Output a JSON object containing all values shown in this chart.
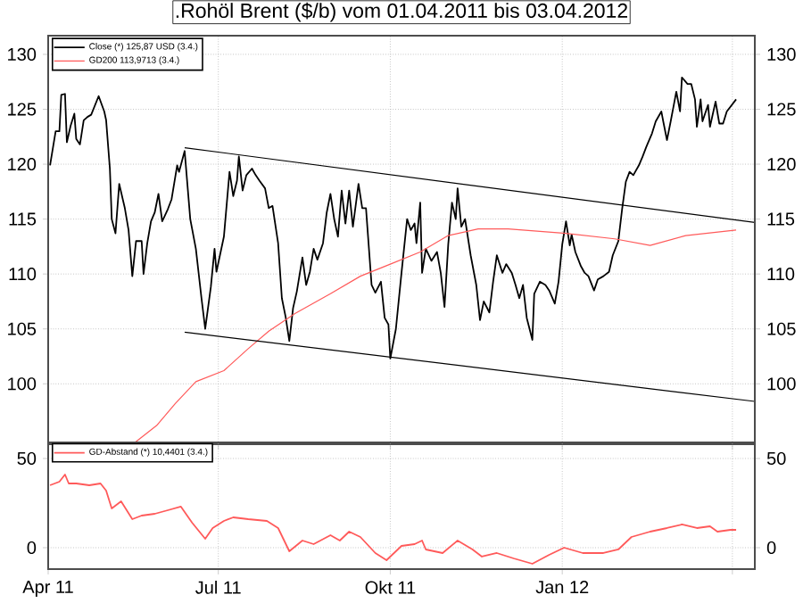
{
  "chart_data": [
    {
      "type": "line",
      "title": ".Rohöl Brent ($/b) vom 01.04.2011 bis 03.04.2012",
      "xlim": [
        "2011-04-01",
        "2012-04-13"
      ],
      "ylim": [
        94.5,
        131.7
      ],
      "y2lim": [
        94.5,
        131.7
      ],
      "xticks": [
        {
          "value": "2011-04-01",
          "label": null
        },
        {
          "value": "2011-07-01",
          "label": null
        },
        {
          "value": "2011-10-01",
          "label": null
        },
        {
          "value": "2012-01-01",
          "label": null
        },
        {
          "value": "2012-04-01",
          "label": null
        }
      ],
      "yticks": [
        100,
        105,
        110,
        115,
        120,
        125,
        130
      ],
      "y2ticks": [
        100,
        105,
        110,
        115,
        120,
        125,
        130
      ],
      "tick_labels": "y",
      "grid": true,
      "legend": "top left",
      "series": [
        {
          "name": "Close (*) 125,87 USD (3.4.)",
          "color": "#000000",
          "x": [
            "2011-04-02",
            "2011-04-05",
            "2011-04-07",
            "2011-04-08",
            "2011-04-10",
            "2011-04-11",
            "2011-04-13",
            "2011-04-15",
            "2011-04-16",
            "2011-04-18",
            "2011-04-20",
            "2011-04-22",
            "2011-04-24",
            "2011-04-28",
            "2011-05-01",
            "2011-05-02",
            "2011-05-04",
            "2011-05-05",
            "2011-05-07",
            "2011-05-09",
            "2011-05-12",
            "2011-05-14",
            "2011-05-16",
            "2011-05-18",
            "2011-05-21",
            "2011-05-22",
            "2011-05-24",
            "2011-05-26",
            "2011-05-28",
            "2011-05-30",
            "2011-06-01",
            "2011-06-04",
            "2011-06-06",
            "2011-06-09",
            "2011-06-10",
            "2011-06-13",
            "2011-06-16",
            "2011-06-19",
            "2011-06-22",
            "2011-06-24",
            "2011-06-27",
            "2011-06-29",
            "2011-06-30",
            "2011-07-02",
            "2011-07-04",
            "2011-07-07",
            "2011-07-09",
            "2011-07-11",
            "2011-07-12",
            "2011-07-14",
            "2011-07-16",
            "2011-07-19",
            "2011-07-21",
            "2011-07-23",
            "2011-07-26",
            "2011-07-28",
            "2011-07-30",
            "2011-08-02",
            "2011-08-04",
            "2011-08-06",
            "2011-08-08",
            "2011-08-10",
            "2011-08-12",
            "2011-08-15",
            "2011-08-17",
            "2011-08-19",
            "2011-08-21",
            "2011-08-23",
            "2011-08-26",
            "2011-08-28",
            "2011-08-30",
            "2011-09-01",
            "2011-09-03",
            "2011-09-05",
            "2011-09-07",
            "2011-09-09",
            "2011-09-11",
            "2011-09-14",
            "2011-09-16",
            "2011-09-18",
            "2011-09-21",
            "2011-09-23",
            "2011-09-26",
            "2011-09-28",
            "2011-09-30",
            "2011-10-01",
            "2011-10-04",
            "2011-10-07",
            "2011-10-10",
            "2011-10-12",
            "2011-10-14",
            "2011-10-15",
            "2011-10-17",
            "2011-10-18",
            "2011-10-20",
            "2011-10-23",
            "2011-10-26",
            "2011-10-28",
            "2011-10-30",
            "2011-11-01",
            "2011-11-03",
            "2011-11-05",
            "2011-11-06",
            "2011-11-08",
            "2011-11-10",
            "2011-11-13",
            "2011-11-16",
            "2011-11-18",
            "2011-11-20",
            "2011-11-23",
            "2011-11-25",
            "2011-11-27",
            "2011-11-30",
            "2011-12-02",
            "2011-12-05",
            "2011-12-07",
            "2011-12-09",
            "2011-12-11",
            "2011-12-13",
            "2011-12-16",
            "2011-12-17",
            "2011-12-20",
            "2011-12-23",
            "2011-12-25",
            "2011-12-28",
            "2011-12-30",
            "2012-01-01",
            "2012-01-03",
            "2012-01-05",
            "2012-01-06",
            "2012-01-08",
            "2012-01-11",
            "2012-01-13",
            "2012-01-15",
            "2012-01-18",
            "2012-01-20",
            "2012-01-23",
            "2012-01-26",
            "2012-01-28",
            "2012-01-31",
            "2012-02-02",
            "2012-02-04",
            "2012-02-06",
            "2012-02-08",
            "2012-02-11",
            "2012-02-13",
            "2012-02-15",
            "2012-02-18",
            "2012-02-20",
            "2012-02-23",
            "2012-02-24",
            "2012-02-26",
            "2012-02-28",
            "2012-03-01",
            "2012-03-02",
            "2012-03-04",
            "2012-03-05",
            "2012-03-08",
            "2012-03-10",
            "2012-03-12",
            "2012-03-13",
            "2012-03-15",
            "2012-03-16",
            "2012-03-19",
            "2012-03-20",
            "2012-03-23",
            "2012-03-25",
            "2012-03-27",
            "2012-03-29",
            "2012-04-03"
          ],
          "values": [
            119.9,
            123.0,
            123.0,
            126.3,
            126.4,
            122.0,
            123.5,
            124.6,
            122.3,
            121.8,
            124.0,
            124.3,
            124.5,
            126.2,
            124.8,
            124.0,
            119.6,
            115.0,
            113.7,
            118.2,
            116.0,
            114.0,
            109.8,
            113.0,
            113.0,
            110.0,
            112.8,
            114.8,
            115.6,
            117.3,
            114.8,
            115.9,
            116.8,
            119.9,
            119.3,
            121.2,
            115.0,
            112.3,
            107.8,
            105.0,
            108.8,
            112.3,
            110.2,
            111.8,
            113.4,
            119.3,
            117.1,
            118.5,
            120.7,
            117.6,
            119.0,
            119.6,
            119.0,
            118.5,
            117.8,
            116.0,
            116.2,
            112.8,
            107.8,
            106.1,
            103.9,
            106.9,
            108.4,
            111.5,
            109.0,
            110.2,
            112.3,
            111.3,
            112.8,
            115.6,
            117.3,
            115.0,
            113.4,
            117.6,
            114.6,
            117.6,
            114.3,
            118.2,
            116.0,
            116.0,
            109.0,
            108.3,
            109.3,
            106.0,
            105.4,
            102.3,
            105.0,
            110.1,
            115.0,
            114.0,
            114.6,
            112.8,
            116.5,
            110.1,
            112.3,
            111.2,
            112.0,
            110.1,
            107.0,
            112.7,
            116.5,
            115.0,
            117.8,
            114.3,
            115.0,
            111.7,
            109.0,
            105.8,
            107.5,
            106.5,
            109.3,
            111.7,
            110.1,
            110.9,
            110.1,
            109.0,
            107.8,
            109.0,
            106.0,
            104.0,
            108.2,
            109.3,
            109.0,
            108.5,
            107.3,
            109.3,
            112.7,
            114.8,
            112.6,
            113.6,
            112.0,
            110.7,
            110.1,
            109.8,
            108.5,
            109.5,
            109.8,
            110.2,
            111.7,
            113.0,
            115.9,
            118.4,
            119.3,
            119.0,
            119.9,
            120.7,
            121.6,
            122.8,
            123.9,
            124.8,
            123.9,
            122.2,
            123.9,
            125.7,
            126.6,
            124.8,
            127.9,
            127.3,
            127.3,
            125.9,
            123.4,
            125.9,
            123.9,
            125.4,
            123.4,
            125.7,
            123.7,
            123.7,
            124.8,
            125.9
          ]
        },
        {
          "name": "GD200 113,9713 (3.4.)",
          "color": "#ff5a5a",
          "x": [
            "2011-05-17",
            "2011-05-29",
            "2011-06-08",
            "2011-06-19",
            "2011-07-04",
            "2011-07-17",
            "2011-07-28",
            "2011-08-11",
            "2011-08-30",
            "2011-09-15",
            "2011-10-01",
            "2011-10-17",
            "2011-11-01",
            "2011-11-17",
            "2011-12-03",
            "2012-01-03",
            "2012-01-29",
            "2012-02-17",
            "2012-03-07",
            "2012-04-03"
          ],
          "values": [
            94.6,
            96.2,
            98.2,
            100.2,
            101.2,
            103.2,
            104.8,
            106.4,
            108.2,
            109.8,
            110.9,
            112.0,
            113.5,
            114.1,
            114.1,
            113.7,
            113.2,
            112.6,
            113.5,
            114.0
          ]
        },
        {
          "color": "#000000",
          "x": [
            "2011-06-13",
            "2012-04-13"
          ],
          "values": [
            121.5,
            114.7
          ]
        },
        {
          "color": "#000000",
          "x": [
            "2011-06-13",
            "2012-04-13"
          ],
          "values": [
            104.7,
            98.4
          ]
        }
      ]
    },
    {
      "type": "line",
      "xlim": [
        "2011-04-01",
        "2012-04-13"
      ],
      "ylim": [
        -12,
        59
      ],
      "y2lim": [
        -12,
        59
      ],
      "xticks": [
        {
          "value": "2011-04-01",
          "label": "Apr 11"
        },
        {
          "value": "2011-07-01",
          "label": "Jul 11"
        },
        {
          "value": "2011-10-01",
          "label": "Okt 11"
        },
        {
          "value": "2012-01-01",
          "label": "Jan 12"
        },
        {
          "value": "2012-04-01",
          "label": null
        }
      ],
      "yticks": [
        0,
        50
      ],
      "y2ticks": [
        0,
        50
      ],
      "grid": true,
      "legend": "top left",
      "series": [
        {
          "name": "GD-Abstand (*) 10,4401 (3.4.)",
          "color": "#ff5a5a",
          "x": [
            "2011-04-02",
            "2011-04-07",
            "2011-04-10",
            "2011-04-12",
            "2011-04-16",
            "2011-04-23",
            "2011-04-29",
            "2011-05-02",
            "2011-05-05",
            "2011-05-10",
            "2011-05-16",
            "2011-05-21",
            "2011-05-28",
            "2011-06-04",
            "2011-06-11",
            "2011-06-17",
            "2011-06-24",
            "2011-06-28",
            "2011-07-04",
            "2011-07-09",
            "2011-07-17",
            "2011-07-27",
            "2011-08-02",
            "2011-08-08",
            "2011-08-15",
            "2011-08-21",
            "2011-08-30",
            "2011-09-04",
            "2011-09-09",
            "2011-09-15",
            "2011-09-23",
            "2011-09-29",
            "2011-10-07",
            "2011-10-14",
            "2011-10-18",
            "2011-10-20",
            "2011-10-29",
            "2011-11-06",
            "2011-11-14",
            "2011-11-19",
            "2011-11-27",
            "2011-12-06",
            "2011-12-16",
            "2011-12-25",
            "2012-01-02",
            "2012-01-12",
            "2012-01-23",
            "2012-01-31",
            "2012-02-07",
            "2012-02-17",
            "2012-02-26",
            "2012-03-05",
            "2012-03-13",
            "2012-03-20",
            "2012-03-24",
            "2012-03-31",
            "2012-04-03"
          ],
          "values": [
            35,
            37,
            41,
            36,
            36,
            35,
            36,
            32,
            22,
            26,
            16,
            18,
            19,
            21,
            23,
            14,
            5,
            11,
            15,
            17,
            16,
            15,
            11,
            -2,
            4,
            2,
            7,
            4,
            9,
            6,
            -3,
            -7,
            1,
            2,
            4,
            -1,
            -3,
            4,
            -1,
            -5,
            -3,
            -6,
            -9,
            -4,
            0,
            -3,
            -3,
            -1,
            6,
            9,
            11,
            13,
            11,
            12,
            9,
            10,
            10
          ]
        }
      ]
    }
  ]
}
